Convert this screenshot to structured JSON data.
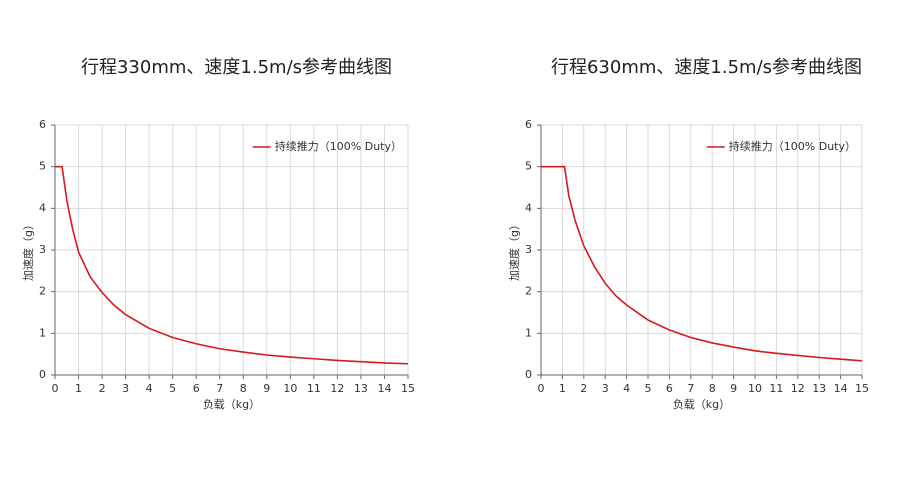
{
  "chart_data": [
    {
      "type": "line",
      "title": "行程330mm、速度1.5m/s参考曲线图",
      "x_label": "负载（kg）",
      "y_label": "加速度（g）",
      "x": [
        0,
        0.3,
        0.5,
        0.75,
        1,
        1.5,
        2,
        2.5,
        3,
        4,
        5,
        6,
        7,
        8,
        9,
        10,
        11,
        12,
        13,
        14,
        15
      ],
      "series": [
        {
          "name": "持续推力（100% Duty）",
          "color": "#d7191c",
          "values": [
            5,
            5,
            4.2,
            3.5,
            2.95,
            2.35,
            1.98,
            1.68,
            1.45,
            1.12,
            0.9,
            0.75,
            0.63,
            0.55,
            0.48,
            0.43,
            0.39,
            0.35,
            0.32,
            0.29,
            0.27
          ]
        }
      ],
      "xlim": [
        0,
        15
      ],
      "ylim": [
        0,
        6
      ],
      "xticks": [
        0,
        1,
        2,
        3,
        4,
        5,
        6,
        7,
        8,
        9,
        10,
        11,
        12,
        13,
        14,
        15
      ],
      "yticks": [
        0,
        1,
        2,
        3,
        4,
        5,
        6
      ],
      "grid": true,
      "legend": "upper right"
    },
    {
      "type": "line",
      "title": "行程630mm、速度1.5m/s参考曲线图",
      "x_label": "负载（kg）",
      "y_label": "加速度（g）",
      "x": [
        0,
        1.1,
        1.3,
        1.6,
        2,
        2.5,
        3,
        3.5,
        4,
        5,
        6,
        7,
        8,
        9,
        10,
        11,
        12,
        13,
        14,
        15
      ],
      "series": [
        {
          "name": "持续推力（100% Duty）",
          "color": "#d7191c",
          "values": [
            5,
            5,
            4.3,
            3.7,
            3.1,
            2.6,
            2.2,
            1.9,
            1.68,
            1.32,
            1.08,
            0.9,
            0.77,
            0.67,
            0.58,
            0.52,
            0.47,
            0.42,
            0.38,
            0.34
          ]
        }
      ],
      "xlim": [
        0,
        15
      ],
      "ylim": [
        0,
        6
      ],
      "xticks": [
        0,
        1,
        2,
        3,
        4,
        5,
        6,
        7,
        8,
        9,
        10,
        11,
        12,
        13,
        14,
        15
      ],
      "yticks": [
        0,
        1,
        2,
        3,
        4,
        5,
        6
      ],
      "grid": true,
      "legend": "upper right"
    }
  ]
}
